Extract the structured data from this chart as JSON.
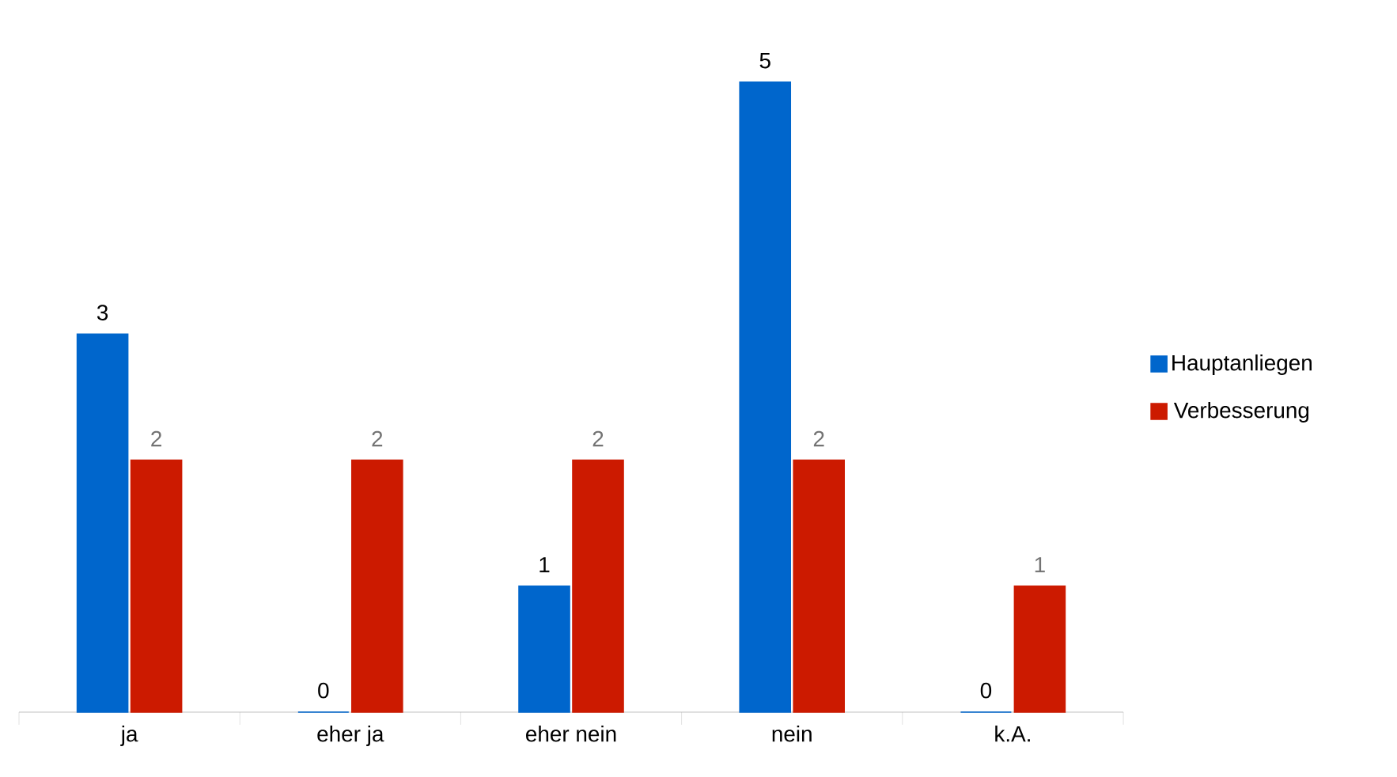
{
  "chart_data": {
    "type": "bar",
    "categories": [
      "ja",
      "eher ja",
      "eher nein",
      "nein",
      "k.A."
    ],
    "series": [
      {
        "name": "Hauptanliegen",
        "color": "#0066cc",
        "values": [
          3,
          0,
          1,
          5,
          0
        ]
      },
      {
        "name": "Verbesserung",
        "color": "#cc1a00",
        "values": [
          2,
          2,
          2,
          2,
          1
        ]
      }
    ],
    "data_labels": true,
    "legend": "right",
    "grid": false
  }
}
